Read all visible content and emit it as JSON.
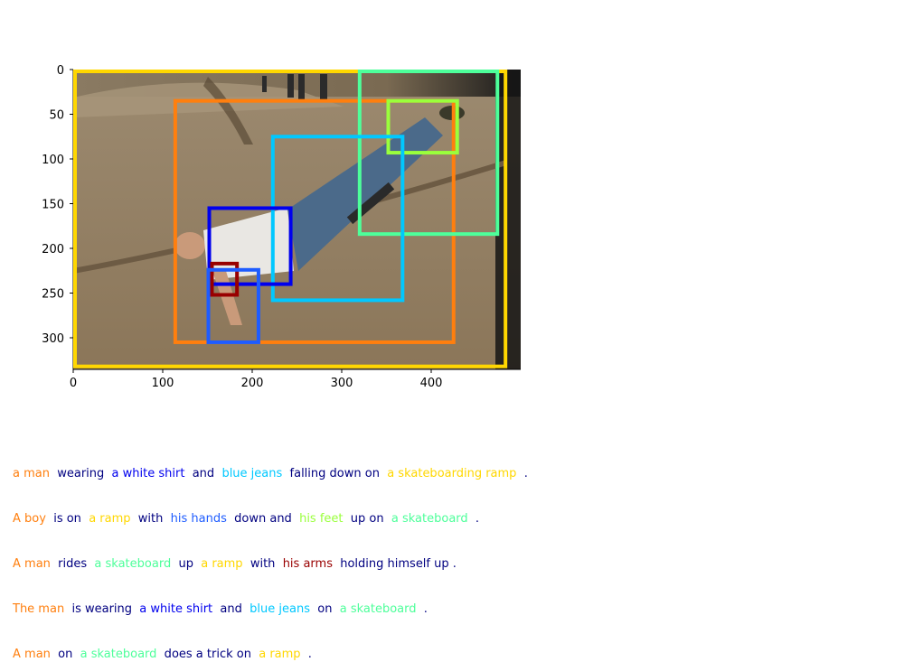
{
  "image": {
    "description_icon": "photo-skateboarder-falling-on-ramp-icon",
    "x_ticks": [
      "0",
      "100",
      "200",
      "300",
      "400"
    ],
    "y_ticks": [
      "0",
      "50",
      "100",
      "150",
      "200",
      "250",
      "300"
    ],
    "x_range": [
      0,
      500
    ],
    "y_range": [
      0,
      335
    ]
  },
  "boxes": [
    {
      "label": "a skateboarding ramp",
      "color": "#ffd700",
      "x1": 0,
      "y1": 0,
      "x2": 483,
      "y2": 332
    },
    {
      "label": "a man",
      "color": "#ff7f0e",
      "x1": 112,
      "y1": 33,
      "x2": 425,
      "y2": 305
    },
    {
      "label": "a skateboard",
      "color": "#4dff9a",
      "x1": 318,
      "y1": 0,
      "x2": 474,
      "y2": 184
    },
    {
      "label": "his feet",
      "color": "#9aff3c",
      "x1": 350,
      "y1": 33,
      "x2": 429,
      "y2": 93
    },
    {
      "label": "blue jeans",
      "color": "#00c8ff",
      "x1": 221,
      "y1": 73,
      "x2": 368,
      "y2": 258
    },
    {
      "label": "a white shirt",
      "color": "#0000ee",
      "x1": 150,
      "y1": 153,
      "x2": 243,
      "y2": 240
    },
    {
      "label": "his arms",
      "color": "#990000",
      "x1": 153,
      "y1": 215,
      "x2": 183,
      "y2": 252
    },
    {
      "label": "his hands",
      "color": "#1e5cff",
      "x1": 149,
      "y1": 222,
      "x2": 207,
      "y2": 305
    }
  ],
  "captions": [
    [
      {
        "text": "a man",
        "color": "#ff7f0e"
      },
      {
        "text": "  wearing  ",
        "color": "#000080"
      },
      {
        "text": "a white shirt",
        "color": "#0000ee"
      },
      {
        "text": "  and  ",
        "color": "#000080"
      },
      {
        "text": "blue jeans",
        "color": "#00c8ff"
      },
      {
        "text": "  falling down on  ",
        "color": "#000080"
      },
      {
        "text": "a skateboarding ramp",
        "color": "#ffd700"
      },
      {
        "text": "  .",
        "color": "#000080"
      }
    ],
    [
      {
        "text": "A boy",
        "color": "#ff7f0e"
      },
      {
        "text": "  is on  ",
        "color": "#000080"
      },
      {
        "text": "a ramp",
        "color": "#ffd700"
      },
      {
        "text": "  with  ",
        "color": "#000080"
      },
      {
        "text": "his hands",
        "color": "#1e5cff"
      },
      {
        "text": "  down and  ",
        "color": "#000080"
      },
      {
        "text": "his feet",
        "color": "#9aff3c"
      },
      {
        "text": "  up on  ",
        "color": "#000080"
      },
      {
        "text": "a skateboard",
        "color": "#4dff9a"
      },
      {
        "text": "  .",
        "color": "#000080"
      }
    ],
    [
      {
        "text": "A man",
        "color": "#ff7f0e"
      },
      {
        "text": "  rides  ",
        "color": "#000080"
      },
      {
        "text": "a skateboard",
        "color": "#4dff9a"
      },
      {
        "text": "  up  ",
        "color": "#000080"
      },
      {
        "text": "a ramp",
        "color": "#ffd700"
      },
      {
        "text": "  with  ",
        "color": "#000080"
      },
      {
        "text": "his arms",
        "color": "#990000"
      },
      {
        "text": "  holding himself up .",
        "color": "#000080"
      }
    ],
    [
      {
        "text": "The man",
        "color": "#ff7f0e"
      },
      {
        "text": "  is wearing  ",
        "color": "#000080"
      },
      {
        "text": "a white shirt",
        "color": "#0000ee"
      },
      {
        "text": "  and  ",
        "color": "#000080"
      },
      {
        "text": "blue jeans",
        "color": "#00c8ff"
      },
      {
        "text": "  on  ",
        "color": "#000080"
      },
      {
        "text": "a skateboard",
        "color": "#4dff9a"
      },
      {
        "text": "  .",
        "color": "#000080"
      }
    ],
    [
      {
        "text": "A man",
        "color": "#ff7f0e"
      },
      {
        "text": "  on  ",
        "color": "#000080"
      },
      {
        "text": "a skateboard",
        "color": "#4dff9a"
      },
      {
        "text": "  does a trick on  ",
        "color": "#000080"
      },
      {
        "text": "a ramp",
        "color": "#ffd700"
      },
      {
        "text": "  .",
        "color": "#000080"
      }
    ]
  ]
}
